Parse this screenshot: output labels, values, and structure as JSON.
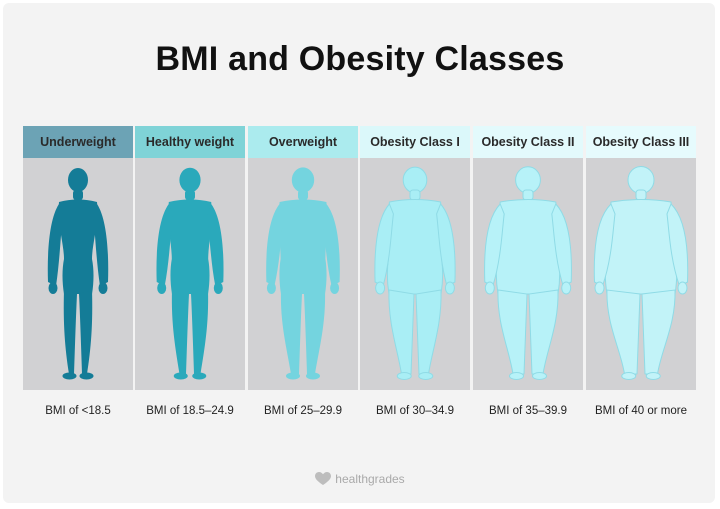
{
  "title": "BMI and Obesity Classes",
  "categories": [
    {
      "name": "Underweight",
      "bmi": "BMI of <18.5",
      "header_color": "#6ca3b5",
      "body_color": "#147c97"
    },
    {
      "name": "Healthy weight",
      "bmi": "BMI of 18.5–24.9",
      "header_color": "#7fd3d7",
      "body_color": "#2aa9bb"
    },
    {
      "name": "Overweight",
      "bmi": "BMI of 25–29.9",
      "header_color": "#abebee",
      "body_color": "#74d4df"
    },
    {
      "name": "Obesity Class I",
      "bmi": "BMI of 30–34.9",
      "header_color": "#dbf8fa",
      "body_color": "#a9eef5"
    },
    {
      "name": "Obesity Class II",
      "bmi": "BMI of 35–39.9",
      "header_color": "#e3fafc",
      "body_color": "#b7f2f8"
    },
    {
      "name": "Obesity Class III",
      "bmi": "BMI of 40 or more",
      "header_color": "#e6fbfd",
      "body_color": "#c2f3f8"
    }
  ],
  "footer": {
    "logo_text": "healthgrades",
    "logo_icon": "heart-icon"
  }
}
